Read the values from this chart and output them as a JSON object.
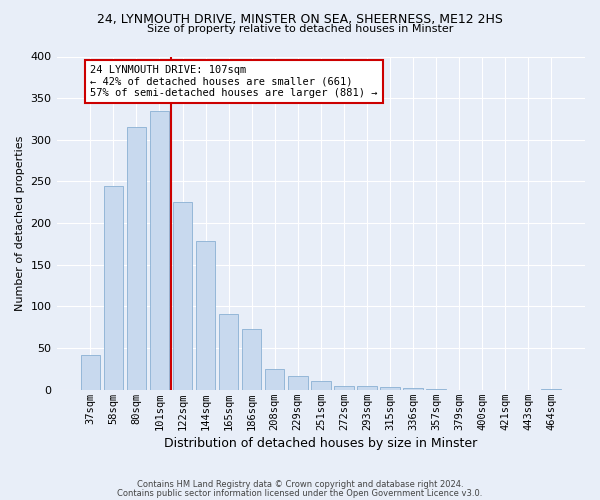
{
  "title_line1": "24, LYNMOUTH DRIVE, MINSTER ON SEA, SHEERNESS, ME12 2HS",
  "title_line2": "Size of property relative to detached houses in Minster",
  "xlabel": "Distribution of detached houses by size in Minster",
  "ylabel": "Number of detached properties",
  "categories": [
    "37sqm",
    "58sqm",
    "80sqm",
    "101sqm",
    "122sqm",
    "144sqm",
    "165sqm",
    "186sqm",
    "208sqm",
    "229sqm",
    "251sqm",
    "272sqm",
    "293sqm",
    "315sqm",
    "336sqm",
    "357sqm",
    "379sqm",
    "400sqm",
    "421sqm",
    "443sqm",
    "464sqm"
  ],
  "values": [
    42,
    245,
    315,
    335,
    225,
    178,
    91,
    73,
    25,
    17,
    10,
    4,
    4,
    3,
    2,
    1,
    0,
    0,
    0,
    0,
    1
  ],
  "bar_color": "#c8d9ee",
  "bar_edge_color": "#8ab0d4",
  "vline_x_index": 3.5,
  "vline_color": "#cc0000",
  "annotation_text": "24 LYNMOUTH DRIVE: 107sqm\n← 42% of detached houses are smaller (661)\n57% of semi-detached houses are larger (881) →",
  "annotation_box_color": "#ffffff",
  "annotation_box_edge": "#cc0000",
  "ylim": [
    0,
    400
  ],
  "yticks": [
    0,
    50,
    100,
    150,
    200,
    250,
    300,
    350,
    400
  ],
  "footer_line1": "Contains HM Land Registry data © Crown copyright and database right 2024.",
  "footer_line2": "Contains public sector information licensed under the Open Government Licence v3.0.",
  "bg_color": "#e8eef8",
  "plot_bg_color": "#e8eef8"
}
